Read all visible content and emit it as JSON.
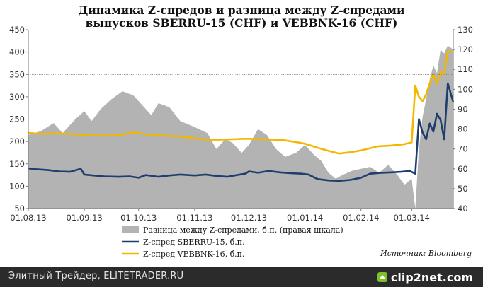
{
  "chart_data": {
    "type": "line",
    "title": [
      "Динамика Z-спредов и разница между Z-спредами",
      "выпусков SBERRU-15 (CHF) и VEBBNK-16 (CHF)"
    ],
    "x_labels": [
      "01.08.13",
      "01.09.13",
      "01.10.13",
      "01.11.13",
      "01.12.13",
      "01.01.14",
      "01.02.14",
      "01.03.14"
    ],
    "x_range": [
      "2013-08-01",
      "2014-03-24"
    ],
    "y_left": {
      "ticks": [
        50,
        100,
        150,
        200,
        250,
        300,
        350,
        400,
        450
      ],
      "min": 50,
      "max": 450
    },
    "y_right": {
      "ticks": [
        40,
        50,
        60,
        70,
        80,
        90,
        100,
        110,
        120,
        130
      ],
      "min": 40,
      "max": 130
    },
    "gridlines_left": [
      350,
      400
    ],
    "series": [
      {
        "name": "Разница между Z-спредами, б.п. (правая шкала)",
        "type": "area",
        "axis": "right",
        "color": "#b3b3b3",
        "points": [
          [
            "2013-08-01",
            77
          ],
          [
            "2013-08-08",
            79
          ],
          [
            "2013-08-15",
            83
          ],
          [
            "2013-08-20",
            78
          ],
          [
            "2013-08-27",
            85
          ],
          [
            "2013-09-01",
            89
          ],
          [
            "2013-09-05",
            84
          ],
          [
            "2013-09-10",
            90
          ],
          [
            "2013-09-16",
            95
          ],
          [
            "2013-09-22",
            99
          ],
          [
            "2013-09-28",
            97
          ],
          [
            "2013-10-03",
            92
          ],
          [
            "2013-10-08",
            87
          ],
          [
            "2013-10-12",
            93
          ],
          [
            "2013-10-18",
            91
          ],
          [
            "2013-10-24",
            84
          ],
          [
            "2013-11-01",
            81
          ],
          [
            "2013-11-08",
            78
          ],
          [
            "2013-11-13",
            70
          ],
          [
            "2013-11-18",
            75
          ],
          [
            "2013-11-22",
            73
          ],
          [
            "2013-11-27",
            68
          ],
          [
            "2013-12-01",
            72
          ],
          [
            "2013-12-06",
            80
          ],
          [
            "2013-12-11",
            77
          ],
          [
            "2013-12-16",
            70
          ],
          [
            "2013-12-21",
            66
          ],
          [
            "2013-12-27",
            68
          ],
          [
            "2014-01-01",
            72
          ],
          [
            "2014-01-06",
            67
          ],
          [
            "2014-01-10",
            64
          ],
          [
            "2014-01-14",
            58
          ],
          [
            "2014-01-18",
            55
          ],
          [
            "2014-01-22",
            57
          ],
          [
            "2014-01-27",
            59
          ],
          [
            "2014-02-01",
            60
          ],
          [
            "2014-02-06",
            61
          ],
          [
            "2014-02-11",
            58
          ],
          [
            "2014-02-16",
            62
          ],
          [
            "2014-02-21",
            57
          ],
          [
            "2014-02-25",
            52
          ],
          [
            "2014-03-01",
            55
          ],
          [
            "2014-03-03",
            40
          ],
          [
            "2014-03-05",
            70
          ],
          [
            "2014-03-07",
            86
          ],
          [
            "2014-03-09",
            95
          ],
          [
            "2014-03-11",
            105
          ],
          [
            "2014-03-13",
            112
          ],
          [
            "2014-03-15",
            108
          ],
          [
            "2014-03-17",
            120
          ],
          [
            "2014-03-19",
            118
          ],
          [
            "2014-03-21",
            122
          ],
          [
            "2014-03-24",
            120
          ]
        ]
      },
      {
        "name": "Z-спред SBERRU-15, б.п.",
        "type": "line",
        "axis": "left",
        "color": "#1f3e6e",
        "points": [
          [
            "2013-08-01",
            140
          ],
          [
            "2013-08-05",
            138
          ],
          [
            "2013-08-12",
            136
          ],
          [
            "2013-08-18",
            133
          ],
          [
            "2013-08-24",
            132
          ],
          [
            "2013-08-30",
            139
          ],
          [
            "2013-09-01",
            126
          ],
          [
            "2013-09-06",
            124
          ],
          [
            "2013-09-12",
            122
          ],
          [
            "2013-09-20",
            121
          ],
          [
            "2013-09-26",
            122
          ],
          [
            "2013-10-01",
            119
          ],
          [
            "2013-10-05",
            125
          ],
          [
            "2013-10-12",
            121
          ],
          [
            "2013-10-18",
            124
          ],
          [
            "2013-10-24",
            126
          ],
          [
            "2013-11-01",
            124
          ],
          [
            "2013-11-07",
            126
          ],
          [
            "2013-11-13",
            123
          ],
          [
            "2013-11-19",
            121
          ],
          [
            "2013-11-23",
            124
          ],
          [
            "2013-11-29",
            128
          ],
          [
            "2013-12-01",
            133
          ],
          [
            "2013-12-06",
            130
          ],
          [
            "2013-12-12",
            134
          ],
          [
            "2013-12-18",
            131
          ],
          [
            "2013-12-24",
            129
          ],
          [
            "2013-12-30",
            128
          ],
          [
            "2014-01-03",
            126
          ],
          [
            "2014-01-08",
            116
          ],
          [
            "2014-01-14",
            113
          ],
          [
            "2014-01-20",
            112
          ],
          [
            "2014-01-26",
            114
          ],
          [
            "2014-02-01",
            119
          ],
          [
            "2014-02-06",
            128
          ],
          [
            "2014-02-12",
            130
          ],
          [
            "2014-02-18",
            131
          ],
          [
            "2014-02-23",
            132
          ],
          [
            "2014-02-28",
            134
          ],
          [
            "2014-03-03",
            128
          ],
          [
            "2014-03-05",
            250
          ],
          [
            "2014-03-07",
            220
          ],
          [
            "2014-03-09",
            205
          ],
          [
            "2014-03-11",
            240
          ],
          [
            "2014-03-13",
            222
          ],
          [
            "2014-03-15",
            262
          ],
          [
            "2014-03-17",
            248
          ],
          [
            "2014-03-19",
            205
          ],
          [
            "2014-03-21",
            330
          ],
          [
            "2014-03-24",
            288
          ]
        ]
      },
      {
        "name": "Z-спред VEBBNK-16, б.п.",
        "type": "line",
        "axis": "left",
        "color": "#f2b800",
        "points": [
          [
            "2013-08-01",
            219
          ],
          [
            "2013-08-08",
            217
          ],
          [
            "2013-08-18",
            218
          ],
          [
            "2013-08-28",
            216
          ],
          [
            "2013-09-01",
            214
          ],
          [
            "2013-09-10",
            213
          ],
          [
            "2013-09-20",
            214
          ],
          [
            "2013-09-28",
            220
          ],
          [
            "2013-10-05",
            216
          ],
          [
            "2013-10-15",
            213
          ],
          [
            "2013-10-25",
            211
          ],
          [
            "2013-11-01",
            207
          ],
          [
            "2013-11-08",
            204
          ],
          [
            "2013-11-15",
            204
          ],
          [
            "2013-11-22",
            205
          ],
          [
            "2013-11-28",
            206
          ],
          [
            "2013-12-01",
            206
          ],
          [
            "2013-12-10",
            205
          ],
          [
            "2013-12-20",
            203
          ],
          [
            "2013-12-28",
            198
          ],
          [
            "2014-01-01",
            195
          ],
          [
            "2014-01-08",
            186
          ],
          [
            "2014-01-14",
            179
          ],
          [
            "2014-01-20",
            173
          ],
          [
            "2014-01-26",
            176
          ],
          [
            "2014-02-01",
            180
          ],
          [
            "2014-02-10",
            189
          ],
          [
            "2014-02-18",
            191
          ],
          [
            "2014-02-25",
            194
          ],
          [
            "2014-03-01",
            198
          ],
          [
            "2014-03-03",
            325
          ],
          [
            "2014-03-05",
            300
          ],
          [
            "2014-03-07",
            290
          ],
          [
            "2014-03-09",
            305
          ],
          [
            "2014-03-11",
            330
          ],
          [
            "2014-03-13",
            350
          ],
          [
            "2014-03-15",
            330
          ],
          [
            "2014-03-17",
            355
          ],
          [
            "2014-03-19",
            352
          ],
          [
            "2014-03-21",
            402
          ],
          [
            "2014-03-24",
            400
          ]
        ]
      }
    ],
    "source": "Источник: Bloomberg"
  },
  "footer": {
    "left_text": "Элитный Трейдер, ELITETRADER.RU",
    "logo_text": "clip2net.com",
    "logo_icon": "clip2net-logo-icon"
  },
  "colors": {
    "area": "#b3b3b3",
    "sber": "#1f3e6e",
    "veb": "#f2b800",
    "footer_bg": "#2b2b2b"
  }
}
